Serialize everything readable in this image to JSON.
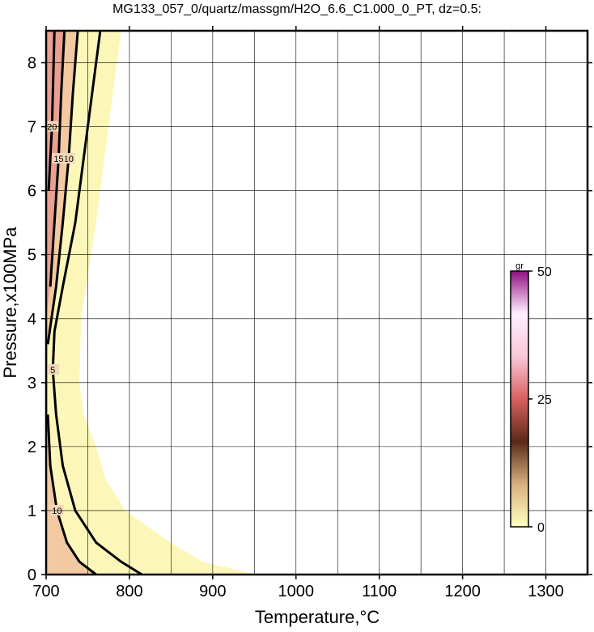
{
  "chart_data": {
    "type": "contour",
    "title": "MG133_057_0/quartz/massgm/H2O_6.6_C1.000_0_PT, dz=0.5:",
    "x_label": "Temperature,°C",
    "y_label": "Pressure,x100MPa",
    "xlim": [
      700,
      1350
    ],
    "ylim": [
      0,
      8.5
    ],
    "xticks": [
      700,
      800,
      900,
      1000,
      1100,
      1200,
      1300
    ],
    "yticks": [
      0,
      1,
      2,
      3,
      4,
      5,
      6,
      7,
      8
    ],
    "xgrid": [
      700,
      750,
      800,
      850,
      900,
      950,
      1000,
      1050,
      1100,
      1150,
      1200,
      1250,
      1300
    ],
    "grid": true,
    "regions": [
      {
        "color": "#fcf7b8",
        "x": [
          700,
          790,
          775,
          760,
          748,
          742,
          740,
          745,
          760,
          771,
          795,
          849,
          888,
          936,
          950,
          700
        ],
        "y": [
          8.5,
          8.5,
          7,
          5.5,
          4.5,
          4,
          3,
          2.5,
          2,
          1.5,
          1,
          0.5,
          0.2,
          0.05,
          0,
          0
        ]
      },
      {
        "color": "#f2c9a0",
        "x": [
          700,
          738,
          732,
          727,
          720,
          712,
          702,
          702,
          705,
          713,
          725,
          740,
          760,
          700
        ],
        "y": [
          8.5,
          8.5,
          7.5,
          6.5,
          5.5,
          4.5,
          3.6,
          2.5,
          1.7,
          1.0,
          0.5,
          0.2,
          0,
          0
        ]
      },
      {
        "color": "#e8a090",
        "x": [
          700,
          722,
          718,
          715,
          710,
          705,
          700
        ],
        "y": [
          8.5,
          8.5,
          7.5,
          6.5,
          5.5,
          4.5,
          4.0
        ]
      }
    ],
    "contours": [
      {
        "level": 5,
        "x": [
          815,
          790,
          760,
          735,
          720,
          712,
          708,
          710,
          720,
          735,
          745,
          755,
          765
        ],
        "y": [
          0,
          0.2,
          0.5,
          1.0,
          1.7,
          2.5,
          3.2,
          3.8,
          4.5,
          5.5,
          6.5,
          7.5,
          8.5
        ]
      },
      {
        "level": 10,
        "x": [
          760,
          740,
          725,
          713,
          705,
          702
        ],
        "y": [
          0,
          0.2,
          0.5,
          1.0,
          1.7,
          2.5
        ]
      },
      {
        "level": 10,
        "x": [
          702,
          712,
          720,
          727,
          732,
          738
        ],
        "y": [
          3.6,
          4.5,
          5.5,
          6.5,
          7.5,
          8.5
        ]
      },
      {
        "level": 15,
        "x": [
          705,
          710,
          715,
          718,
          722
        ],
        "y": [
          4.5,
          5.5,
          6.5,
          7.5,
          8.5
        ]
      },
      {
        "level": 20,
        "x": [
          703,
          707,
          710
        ],
        "y": [
          6,
          7,
          8.5
        ]
      }
    ],
    "colorbar": {
      "label": "gr",
      "lim": [
        0,
        50
      ],
      "ticks": [
        0,
        25,
        50
      ],
      "colors": [
        "#ffffc0",
        "#d8b080",
        "#5a2a18",
        "#d86060",
        "#f8c8d8",
        "#fff0ff",
        "#901080"
      ]
    }
  }
}
